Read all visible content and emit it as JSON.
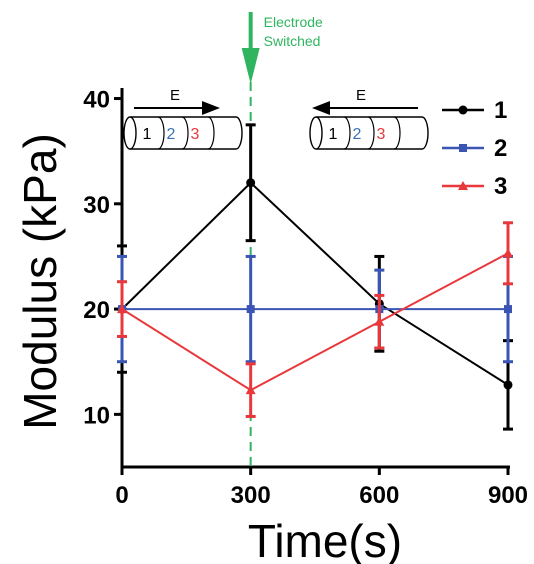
{
  "chart_data": {
    "type": "line",
    "title": "",
    "xlabel": "Time(s)",
    "ylabel": "Modulus (kPa)",
    "x": [
      0,
      300,
      600,
      900
    ],
    "xticks": [
      0,
      300,
      600,
      900
    ],
    "xtick_labels": [
      "0",
      "300",
      "600",
      "900"
    ],
    "yticks": [
      10,
      20,
      30,
      40
    ],
    "ytick_labels": [
      "10",
      "20",
      "30",
      "40"
    ],
    "xlim": [
      0,
      900
    ],
    "ylim": [
      5,
      41
    ],
    "grid": false,
    "legend_position": "top-right",
    "series": [
      {
        "name": "1",
        "color": "#000000",
        "marker": "circle",
        "values": [
          20.0,
          32.0,
          20.5,
          12.8
        ],
        "errors": [
          6.0,
          5.5,
          4.5,
          4.2
        ]
      },
      {
        "name": "2",
        "color": "#3a55b4",
        "marker": "square",
        "values": [
          20.0,
          20.0,
          20.0,
          20.0
        ],
        "errors": [
          5.0,
          5.0,
          3.7,
          5.0
        ]
      },
      {
        "name": "3",
        "color": "#e8383c",
        "marker": "triangle",
        "values": [
          20.0,
          12.3,
          18.8,
          25.3
        ],
        "errors": [
          2.6,
          2.5,
          2.5,
          2.9
        ]
      }
    ],
    "annotations": [
      {
        "text_lines": [
          "Electrode",
          "Switched"
        ],
        "x": 300,
        "color": "#2fb560",
        "style": "dashed-vertical-line-with-arrow"
      }
    ],
    "insets": [
      {
        "label": "E",
        "arrow_direction": "right",
        "segments": [
          "1",
          "2",
          "3"
        ],
        "segment_colors": [
          "#000000",
          "#3a72b8",
          "#e8383c"
        ]
      },
      {
        "label": "E",
        "arrow_direction": "left",
        "segments": [
          "1",
          "2",
          "3"
        ],
        "segment_colors": [
          "#000000",
          "#3a72b8",
          "#e8383c"
        ]
      }
    ]
  }
}
